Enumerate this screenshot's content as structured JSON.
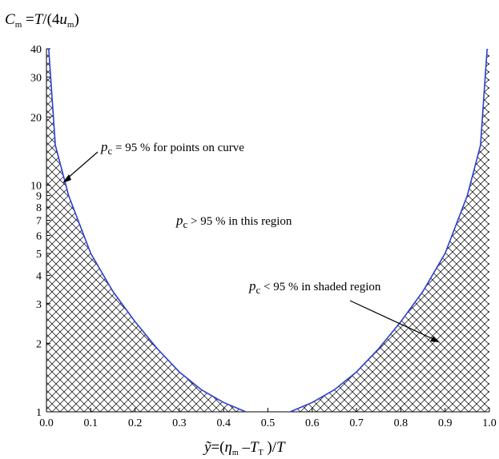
{
  "chart_data": {
    "type": "area",
    "title_parts": {
      "c": "C",
      "m": "m",
      "eq": " =",
      "t": "T",
      "slash": "/(4",
      "u": "u",
      "m2": "m",
      "close": ")"
    },
    "xlabel_parts": {
      "y": "ỹ",
      "eq": "=(",
      "eta": "η",
      "m": "m",
      "minus": " –",
      "t": "T",
      "sub_t": "T",
      "close": " )/",
      "t2": "T"
    },
    "x_ticks": [
      "0.0",
      "0.1",
      "0.2",
      "0.3",
      "0.4",
      "0.5",
      "0.6",
      "0.7",
      "0.8",
      "0.9",
      "1.0"
    ],
    "y_ticks": [
      "1",
      "2",
      "3",
      "4",
      "5",
      "6",
      "7",
      "8",
      "9",
      "10",
      "20",
      "30",
      "40"
    ],
    "y_scale": "log",
    "xlim": [
      0.0,
      1.0
    ],
    "ylim": [
      1,
      40
    ],
    "series": [
      {
        "x": [
          0.005,
          0.02,
          0.05,
          0.1,
          0.15,
          0.2,
          0.25,
          0.3,
          0.35,
          0.4,
          0.45
        ],
        "y": [
          40,
          15,
          9,
          5,
          3.4,
          2.5,
          1.9,
          1.5,
          1.25,
          1.1,
          1.0
        ]
      },
      {
        "x": [
          0.55,
          0.6,
          0.65,
          0.7,
          0.75,
          0.8,
          0.85,
          0.9,
          0.95,
          0.98,
          0.995
        ],
        "y": [
          1.0,
          1.1,
          1.25,
          1.5,
          1.9,
          2.5,
          3.4,
          5,
          9,
          15,
          40
        ]
      }
    ],
    "shading": "cross-hatched below curve",
    "annotations": [
      {
        "p": "p",
        "sub": "c",
        "text": " = 95  % for points on curve"
      },
      {
        "p": "p",
        "sub": "c",
        "text": "  >  95 % in this region"
      },
      {
        "p": "p",
        "sub": "c",
        "text": "  <  95 % in shaded region"
      }
    ],
    "colors": {
      "curve": "#2b3fcf",
      "hatch": "#000000"
    }
  }
}
